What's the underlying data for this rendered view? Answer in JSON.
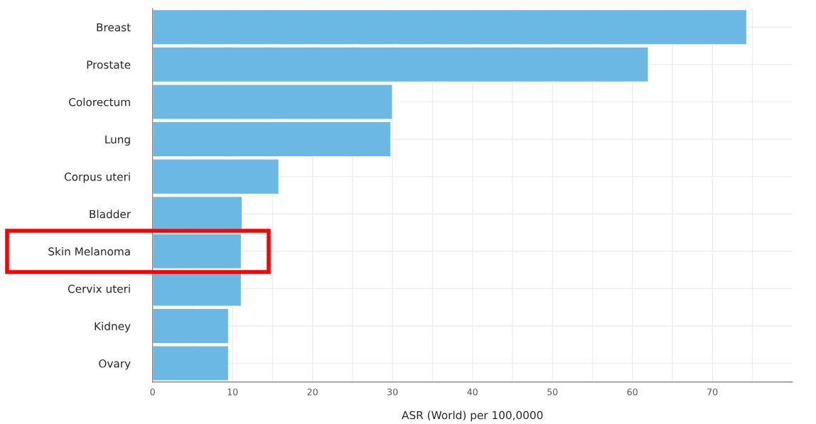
{
  "chart_data": {
    "type": "bar",
    "orientation": "horizontal",
    "xlabel": "ASR (World) per 100,0000",
    "categories": [
      "Breast",
      "Prostate",
      "Colorectum",
      "Lung",
      "Corpus uteri",
      "Bladder",
      "Skin Melanoma",
      "Cervix uteri",
      "Kidney",
      "Ovary"
    ],
    "values": [
      74.3,
      62.0,
      30.0,
      29.8,
      15.8,
      11.2,
      11.1,
      11.1,
      9.5,
      9.5
    ],
    "color": "#6cb8e4",
    "xlim": [
      0,
      80
    ],
    "xticks": [
      0,
      {
        "value": 5,
        "label": null
      },
      10,
      {
        "value": 15,
        "label": null
      },
      20,
      {
        "value": 25,
        "label": null
      },
      30,
      {
        "value": 35,
        "label": null
      },
      40,
      {
        "value": 45,
        "label": null
      },
      50,
      {
        "value": 55,
        "label": null
      },
      60,
      {
        "value": 65,
        "label": null
      },
      70,
      {
        "value": 75,
        "label": null
      }
    ],
    "grid": true
  }
}
